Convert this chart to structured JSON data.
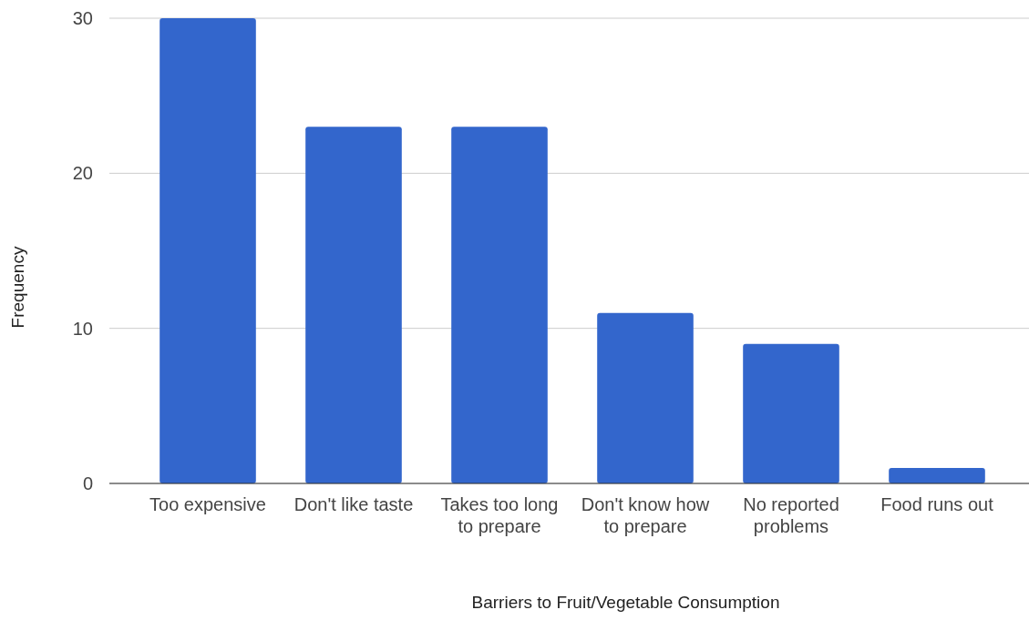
{
  "chart_data": {
    "type": "bar",
    "xlabel": "Barriers to Fruit/Vegetable Consumption",
    "ylabel": "Frequency",
    "categories": [
      "Too expensive",
      "Don't like taste",
      "Takes too long to prepare",
      "Don't know how to prepare",
      "No reported problems",
      "Food runs out"
    ],
    "values": [
      30,
      23,
      23,
      11,
      9,
      1
    ],
    "color": "#3366cc",
    "ylim": [
      0,
      30
    ],
    "yticks": [
      0,
      10,
      20,
      30
    ],
    "grid": "y"
  }
}
